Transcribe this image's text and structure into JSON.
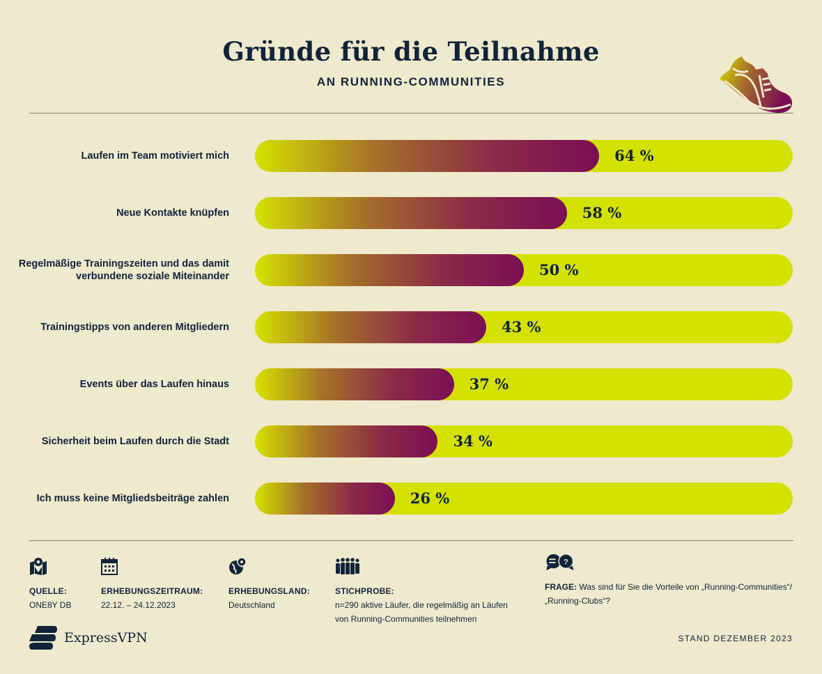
{
  "header": {
    "title": "Gründe für die Teilnahme",
    "subtitle": "AN RUNNING-COMMUNITIES",
    "icon": "running-shoe-icon"
  },
  "chart_data": {
    "type": "bar",
    "orientation": "horizontal",
    "categories": [
      "Laufen im Team motiviert mich",
      "Neue Kontakte knüpfen",
      "Regelmäßige Trainingszeiten und das damit verbundene soziale Miteinander",
      "Trainingstipps von anderen Mitgliedern",
      "Events über das Laufen hinaus",
      "Sicherheit beim Laufen durch die Stadt",
      "Ich muss keine Mitgliedsbeiträge zahlen"
    ],
    "values": [
      64,
      58,
      50,
      43,
      37,
      34,
      26
    ],
    "value_labels": [
      "64 %",
      "58 %",
      "50 %",
      "43 %",
      "37 %",
      "34 %",
      "26 %"
    ],
    "xlim": [
      0,
      100
    ],
    "grid": false,
    "colors": {
      "track": "#d5e200",
      "gradient_start": "#d5e200",
      "gradient_end": "#7b0f55",
      "text": "#10243a",
      "background": "#efe9cd"
    }
  },
  "footer": {
    "source": {
      "icon": "map-pin-icon",
      "label": "QUELLE:",
      "value": "ONE8Y DB"
    },
    "period": {
      "icon": "calendar-icon",
      "label": "ERHEBUNGSZEITRAUM:",
      "value": "22.12. – 24.12.2023"
    },
    "country": {
      "icon": "globe-pin-icon",
      "label": "ERHEBUNGSLAND:",
      "value": "Deutschland"
    },
    "sample": {
      "icon": "people-group-icon",
      "label": "STICHPROBE:",
      "line1": "n=290 aktive Läufer, die regelmäßig an Läufen",
      "line2": "von Running-Communities teilnehmen"
    },
    "question": {
      "icon": "chat-question-icon",
      "label": "FRAGE:",
      "line1": "Was sind für Sie die Vorteile von „Running-Communities“/",
      "line2": "„Running-Clubs“?"
    },
    "brand": "ExpressVPN",
    "stand": "STAND DEZEMBER 2023"
  }
}
